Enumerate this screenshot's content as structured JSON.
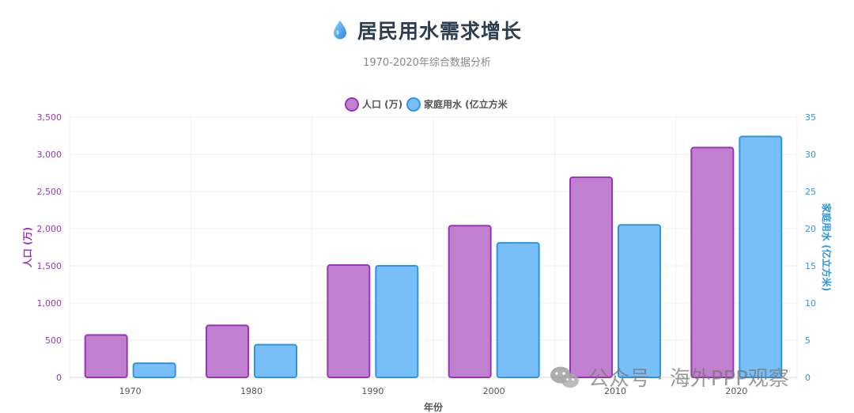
{
  "header": {
    "icon": "water-drop-icon",
    "title": "居民用水需求增长",
    "subtitle": "1970-2020年综合数据分析"
  },
  "watermark": {
    "icon": "wechat-icon",
    "text": "公众号 · 海外PPP观察"
  },
  "chart_data": {
    "type": "bar",
    "categories": [
      "1970",
      "1980",
      "1990",
      "2000",
      "2010",
      "2020"
    ],
    "series": [
      {
        "name": "人口 (万)",
        "axis": "left",
        "color": "#c17fd0",
        "border": "#9b35b8",
        "values": [
          570,
          700,
          1510,
          2040,
          2690,
          3090
        ]
      },
      {
        "name": "家庭用水 (亿立方米",
        "axis": "right",
        "color": "#78bef8",
        "border": "#2f95e0",
        "values": [
          1.9,
          4.4,
          15.0,
          18.1,
          20.5,
          32.4
        ]
      }
    ],
    "xlabel": "年份",
    "ylabel_left": "人口 (万)",
    "ylabel_right": "家庭用水 (亿立方米)",
    "ylim_left": [
      0,
      3500
    ],
    "ylim_right": [
      0,
      35
    ],
    "yticks_left": [
      "0",
      "500",
      "1,000",
      "1,500",
      "2,000",
      "2,500",
      "3,000",
      "3,500"
    ],
    "yticks_right": [
      "0",
      "5",
      "10",
      "15",
      "20",
      "25",
      "30",
      "35"
    ],
    "left_axis_color": "#9b35b8",
    "right_axis_color": "#2f95e0",
    "grid": true,
    "legend": "top-center"
  }
}
